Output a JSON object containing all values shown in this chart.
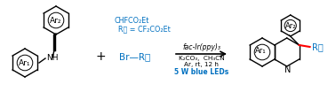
{
  "bg_color": "#ffffff",
  "black": "#000000",
  "blue": "#0070C0",
  "red": "#FF0000",
  "fig_width": 3.78,
  "fig_height": 1.21,
  "dpi": 100,
  "reactant_ar2": "Ar₂",
  "ar1_label": "Ar₁",
  "nh_label": "NH",
  "plus_sign": "+",
  "br_rf": "Br—R⁦",
  "rf_eq": "R⁦ = CF₂CO₂Et",
  "rf_eq2": "CHFCO₂Et",
  "catalyst": "fac-Ir(ppy)₃",
  "conditions1": "K₂CO₃,  CH₃CN",
  "conditions2": "Ar, rt, 12 h",
  "leds": "5 W blue LEDs",
  "product_ar2": "Ar₂",
  "product_ar1": "Ar₁",
  "product_rf": "R⁦",
  "product_n": "N"
}
